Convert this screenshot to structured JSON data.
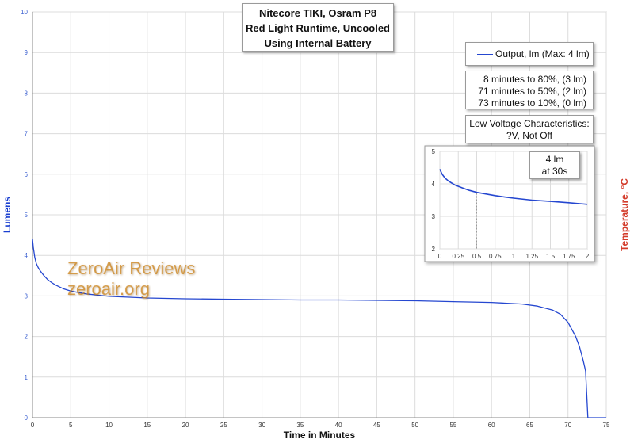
{
  "title_lines": [
    "Nitecore TIKI, Osram P8",
    "Red Light Runtime, Uncooled",
    "Using Internal Battery"
  ],
  "legend_label": "Output, lm (Max: 4 lm)",
  "stats_lines": [
    "8 minutes to 80%, (3 lm)",
    "71 minutes to 50%, (2 lm)",
    "73 minutes to 10%, (0 lm)"
  ],
  "lv_lines": [
    "Low Voltage Characteristics:",
    "?V, Not Off"
  ],
  "inset_label_lines": [
    "4 lm",
    "at 30s"
  ],
  "watermark_lines": [
    "ZeroAir Reviews",
    "zeroair.org"
  ],
  "colors": {
    "series": "#2547d0",
    "left_axis_label": "#1a3fd0",
    "right_axis_label": "#d33b2a",
    "watermark": "#cd851e",
    "grid": "#dcdcdc"
  },
  "chart_data": [
    {
      "type": "line",
      "xlabel": "Time in Minutes",
      "ylabel": "Lumens",
      "y2label": "Temperature, °C",
      "xlim": [
        0,
        75
      ],
      "ylim": [
        0,
        10
      ],
      "xticks": [
        0,
        5,
        10,
        15,
        20,
        25,
        30,
        35,
        40,
        45,
        50,
        55,
        60,
        65,
        70,
        75
      ],
      "yticks": [
        0,
        1,
        2,
        3,
        4,
        5,
        6,
        7,
        8,
        9,
        10
      ],
      "grid": true,
      "legend": "top-right",
      "series": [
        {
          "name": "Output, lm (Max: 4 lm)",
          "x": [
            0,
            0.1,
            0.3,
            0.5,
            0.75,
            1,
            1.5,
            2,
            2.5,
            3,
            4,
            5,
            7,
            10,
            15,
            20,
            25,
            30,
            35,
            40,
            45,
            50,
            55,
            60,
            64,
            66,
            68,
            69,
            70,
            71,
            71.5,
            72,
            72.3,
            72.6,
            73,
            75
          ],
          "y": [
            4.4,
            4.2,
            3.95,
            3.8,
            3.7,
            3.62,
            3.5,
            3.4,
            3.33,
            3.27,
            3.18,
            3.12,
            3.05,
            2.99,
            2.95,
            2.93,
            2.92,
            2.91,
            2.9,
            2.9,
            2.89,
            2.88,
            2.86,
            2.84,
            2.8,
            2.75,
            2.65,
            2.55,
            2.35,
            2.0,
            1.75,
            1.4,
            1.15,
            0.0,
            0.0,
            0.0
          ]
        }
      ]
    },
    {
      "type": "line",
      "xlim": [
        0,
        2
      ],
      "ylim": [
        2,
        5
      ],
      "xticks": [
        "0",
        "0.25",
        "0.5",
        "0.75",
        "1",
        "1.25",
        "1.5",
        "1.75",
        "2"
      ],
      "yticks": [
        2,
        3,
        4,
        5
      ],
      "grid": true,
      "annotation": {
        "x": 0.5,
        "y": 3.72
      },
      "series": [
        {
          "x": [
            0,
            0.03,
            0.07,
            0.12,
            0.2,
            0.3,
            0.4,
            0.5,
            0.6,
            0.75,
            0.9,
            1.0,
            1.25,
            1.5,
            1.75,
            1.9,
            2.0
          ],
          "y": [
            4.45,
            4.3,
            4.18,
            4.08,
            3.97,
            3.88,
            3.8,
            3.74,
            3.7,
            3.64,
            3.59,
            3.56,
            3.5,
            3.46,
            3.42,
            3.39,
            3.37
          ]
        }
      ]
    }
  ]
}
